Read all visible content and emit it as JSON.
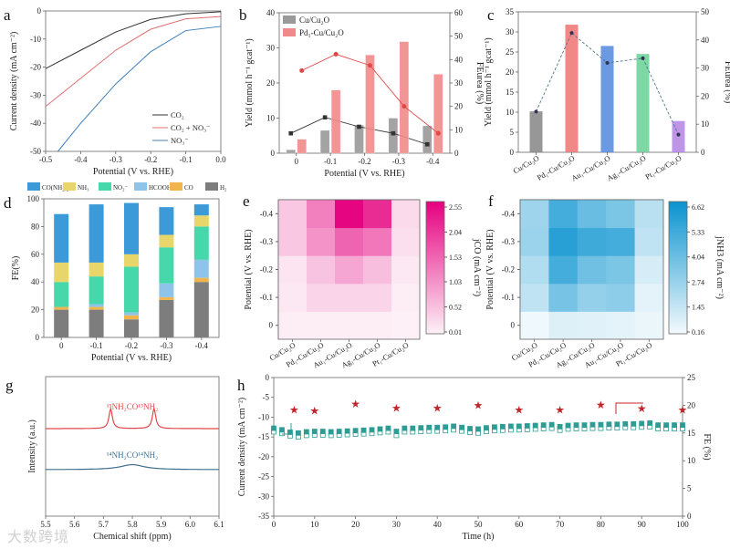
{
  "watermark": "大数跨境",
  "chart_data": [
    {
      "panel": "a",
      "type": "line",
      "xlabel": "Potential (V vs. RHE)",
      "ylabel": "Current density (mA cm⁻²)",
      "xlim": [
        -0.5,
        0
      ],
      "ylim": [
        -50,
        0
      ],
      "xticks": [
        "-0.5",
        "-0.4",
        "-0.3",
        "-0.2",
        "-0.1",
        "0.0"
      ],
      "yticks": [
        "0",
        "-10",
        "-20",
        "-30",
        "-40",
        "-50"
      ],
      "legend_position": "bottom-right",
      "series": [
        {
          "name": "CO₂",
          "color": "#333333",
          "x": [
            -0.5,
            -0.4,
            -0.3,
            -0.2,
            -0.1,
            0
          ],
          "y": [
            -20.5,
            -14,
            -7.5,
            -3,
            -1,
            -0.3
          ]
        },
        {
          "name": "CO₂ + NO₃⁻",
          "color": "#e07070",
          "x": [
            -0.5,
            -0.4,
            -0.3,
            -0.2,
            -0.1,
            0
          ],
          "y": [
            -34,
            -24,
            -14,
            -6.5,
            -2.8,
            -2
          ]
        },
        {
          "name": "NO₃⁻",
          "color": "#3f7fb5",
          "x": [
            -0.465,
            -0.4,
            -0.3,
            -0.2,
            -0.1,
            0
          ],
          "y": [
            -50,
            -40,
            -26,
            -14.5,
            -7,
            -5.5
          ]
        }
      ]
    },
    {
      "panel": "b",
      "type": "bar",
      "xlabel": "Potential (V vs. RHE)",
      "ylabel": "Yield (mmol h⁻¹ gcat⁻¹)",
      "y2label": "FEurea (%)",
      "categories": [
        "0",
        "-0.1",
        "-0.2",
        "-0.3",
        "-0.4"
      ],
      "ylim": [
        0,
        40
      ],
      "y2lim": [
        0,
        60
      ],
      "yticks": [
        "0",
        "10",
        "20",
        "30",
        "40"
      ],
      "y2ticks": [
        "0",
        "10",
        "20",
        "30",
        "40",
        "50",
        "60"
      ],
      "legend_position": "top-left",
      "series": [
        {
          "name": "Cu/Cu₂O",
          "color": "#9a9a9a",
          "line_color": "#333333",
          "yield": [
            1,
            6.5,
            8,
            10,
            7.8
          ],
          "fe": [
            8.5,
            15.3,
            11.3,
            8.5,
            3.8
          ]
        },
        {
          "name": "Pd₁-Cu/Cu₂O",
          "color": "#f08a8a",
          "line_color": "#e04848",
          "yield": [
            4,
            18,
            28,
            31.8,
            22.5
          ],
          "fe": [
            35.3,
            42.3,
            37.5,
            20,
            8.5
          ]
        }
      ]
    },
    {
      "panel": "c",
      "type": "bar",
      "ylabel": "Yield (mmol h⁻¹ gcat⁻¹)",
      "y2label": "FEurea (%)",
      "categories": [
        "Cu/Cu₂O",
        "Pd₁-Cu/Cu₂O",
        "Au₁-Cu/Cu₂O",
        "Ag₁-Cu/Cu₂O",
        "Pt₁-Cu/Cu₂O"
      ],
      "colors": [
        "#8c8c8c",
        "#f07a7a",
        "#5b8fe0",
        "#6fd49a",
        "#b88ae6"
      ],
      "ylim": [
        0,
        35
      ],
      "y2lim": [
        0,
        50
      ],
      "yticks": [
        "0",
        "5",
        "10",
        "15",
        "20",
        "25",
        "30",
        "35"
      ],
      "y2ticks": [
        "0",
        "10",
        "20",
        "30",
        "40",
        "50"
      ],
      "yield": [
        10.2,
        31.8,
        26.5,
        24.5,
        7.8
      ],
      "fe": [
        14.5,
        42.5,
        31.8,
        33.5,
        6.3
      ]
    },
    {
      "panel": "d",
      "type": "bar",
      "stacked": true,
      "xlabel": "Potential (V vs. RHE)",
      "ylabel": "FE(%)",
      "categories": [
        "0",
        "-0.1",
        "-0.2",
        "-0.3",
        "-0.4"
      ],
      "ylim": [
        0,
        100
      ],
      "yticks": [
        "0",
        "20",
        "40",
        "60",
        "80",
        "100"
      ],
      "legend_position": "top",
      "series": [
        {
          "name": "CO(NH₂)₂",
          "color": "#3d9ad8",
          "values": [
            35,
            42,
            37,
            20,
            8
          ]
        },
        {
          "name": "NH₃",
          "color": "#e8d66a",
          "values": [
            14,
            10,
            9,
            9,
            8
          ]
        },
        {
          "name": "NO₂⁻",
          "color": "#46d8aa",
          "values": [
            18,
            20,
            33,
            26,
            24
          ]
        },
        {
          "name": "HCOOH",
          "color": "#8fc4ea",
          "values": [
            0,
            2,
            2,
            10,
            13
          ]
        },
        {
          "name": "CO",
          "color": "#f0b54c",
          "values": [
            2,
            2,
            3,
            2,
            3
          ]
        },
        {
          "name": "H₂",
          "color": "#7d7d7d",
          "values": [
            20,
            20,
            13,
            27,
            40
          ]
        }
      ]
    },
    {
      "panel": "e",
      "type": "heatmap",
      "ylabel": "Potential (V vs. RHE)",
      "cblabel": "jCO (mA cm⁻²)",
      "xcategories": [
        "Cu/Cu₂O",
        "Pd₁-Cu/Cu₂O",
        "Au₁-Cu/Cu₂O",
        "Ag₁-Cu/Cu₂O",
        "Pt₁-Cu/Cu₂O"
      ],
      "ycategories": [
        "0",
        "-0.1",
        "-0.2",
        "-0.3",
        "-0.4"
      ],
      "values": [
        [
          0.05,
          0.05,
          0.05,
          0.05,
          0.02
        ],
        [
          0.1,
          0.3,
          0.3,
          0.3,
          0.05
        ],
        [
          0.15,
          0.5,
          0.8,
          0.55,
          0.1
        ],
        [
          0.45,
          1.0,
          1.5,
          1.3,
          0.2
        ],
        [
          0.45,
          1.2,
          2.5,
          2.1,
          0.25
        ]
      ],
      "range": [
        0.01,
        2.55
      ],
      "cbticks": [
        "0.01",
        "0.52",
        "1.03",
        "1.53",
        "2.04",
        "2.55"
      ],
      "color_low": "#fdf1f7",
      "color_high": "#e5007f"
    },
    {
      "panel": "f",
      "type": "heatmap",
      "ylabel": "Potential (V vs. RHE)",
      "cblabel": "jNH3 (mA cm⁻²)",
      "xcategories": [
        "Cu/Cu₂O",
        "Pd₁-Cu/Cu₂O",
        "Ag₁-Cu/Cu₂O",
        "Au₁-Cu/Cu₂O",
        "Pt₁-Cu/Cu₂O"
      ],
      "ycategories": [
        "0",
        "-0.1",
        "-0.2",
        "-0.3",
        "-0.4"
      ],
      "values": [
        [
          0.3,
          0.8,
          0.7,
          0.6,
          0.4
        ],
        [
          1.6,
          3.6,
          2.8,
          3.0,
          0.6
        ],
        [
          2.0,
          5.0,
          3.8,
          3.5,
          1.0
        ],
        [
          2.6,
          5.8,
          5.2,
          5.0,
          1.6
        ],
        [
          2.5,
          5.0,
          4.0,
          3.5,
          1.8
        ]
      ],
      "range": [
        0.16,
        6.62
      ],
      "cbticks": [
        "0.16",
        "1.45",
        "2.74",
        "4.04",
        "5.33",
        "6.62"
      ],
      "color_low": "#f4fafd",
      "color_high": "#0a93cf"
    },
    {
      "panel": "g",
      "type": "line",
      "xlabel": "Chemical shift (ppm)",
      "ylabel": "Intensity (a.u.)",
      "xlim": [
        5.5,
        6.1
      ],
      "xticks": [
        "5.5",
        "5.6",
        "5.7",
        "5.8",
        "5.9",
        "6.0",
        "6.1"
      ],
      "series": [
        {
          "label": "¹⁵NH₂CO¹⁵NH₂",
          "color": "#e0474c",
          "peaks": [
            {
              "center": 5.725,
              "height": 1
            },
            {
              "center": 5.875,
              "height": 1
            }
          ],
          "width": 0.007
        },
        {
          "label": "¹⁴NH₂CO¹⁴NH₂",
          "color": "#3e6f8f",
          "peaks": [
            {
              "center": 5.8,
              "height": 0.55
            }
          ],
          "width": 0.05
        }
      ]
    },
    {
      "panel": "h",
      "type": "scatter",
      "xlabel": "Time (h)",
      "ylabel": "Current density (mA cm⁻²)",
      "y2label": "FE (%)",
      "xlim": [
        0,
        100
      ],
      "ylim": [
        -35,
        0
      ],
      "y2lim": [
        0,
        25
      ],
      "xticks": [
        "0",
        "10",
        "20",
        "30",
        "40",
        "50",
        "60",
        "70",
        "80",
        "90",
        "100"
      ],
      "yticks": [
        "0",
        "-5",
        "-10",
        "-15",
        "-20",
        "-25",
        "-30",
        "-35"
      ],
      "y2ticks": [
        "0",
        "5",
        "10",
        "15",
        "20",
        "25"
      ],
      "time_step_h": 2,
      "current_filled": [
        -12.8,
        -13.2,
        -13.8,
        -14.0,
        -13.7,
        -13.6,
        -13.6,
        -13.7,
        -13.6,
        -13.5,
        -13.4,
        -13.3,
        -13.2,
        -13.0,
        -12.8,
        -13.6,
        -12.8,
        -12.8,
        -12.7,
        -12.6,
        -12.6,
        -12.5,
        -12.3,
        -12.6,
        -12.9,
        -13.0,
        -12.7,
        -12.5,
        -12.4,
        -12.3,
        -12.3,
        -12.2,
        -12.1,
        -12.0,
        -11.9,
        -12.4,
        -12.1,
        -12.0,
        -12.0,
        -11.9,
        -11.9,
        -11.8,
        -11.8,
        -11.7,
        -11.7,
        -11.6,
        -11.5,
        -12.0,
        -12.0,
        -12.0,
        -12.0
      ],
      "current_open": [
        -13.7,
        -14.1,
        -14.7,
        -15.0,
        -14.6,
        -14.5,
        -14.5,
        -14.6,
        -14.5,
        -14.4,
        -14.3,
        -14.2,
        -14.1,
        -13.9,
        -13.7,
        -14.6,
        -13.7,
        -13.7,
        -13.6,
        -13.5,
        -13.5,
        -13.4,
        -13.2,
        -13.5,
        -13.8,
        -14.0,
        -13.6,
        -13.4,
        -13.3,
        -13.2,
        -13.2,
        -13.1,
        -13.0,
        -12.9,
        -12.8,
        -13.3,
        -13.0,
        -12.9,
        -12.9,
        -12.8,
        -12.8,
        -12.7,
        -12.7,
        -12.6,
        -12.6,
        -12.5,
        -12.4,
        -12.9,
        -12.9,
        -12.9,
        -12.9
      ],
      "current_color": "#2e9c94",
      "fe_time": [
        5,
        10,
        20,
        30,
        40,
        50,
        60,
        70,
        80,
        90,
        100
      ],
      "fe_values": [
        19.2,
        19.0,
        20.2,
        19.5,
        19.5,
        20.0,
        19.2,
        19.2,
        20.1,
        19.4,
        19.2
      ],
      "fe_color": "#c0262a"
    }
  ],
  "panel_letters": [
    "a",
    "b",
    "c",
    "d",
    "e",
    "f",
    "g",
    "h"
  ]
}
